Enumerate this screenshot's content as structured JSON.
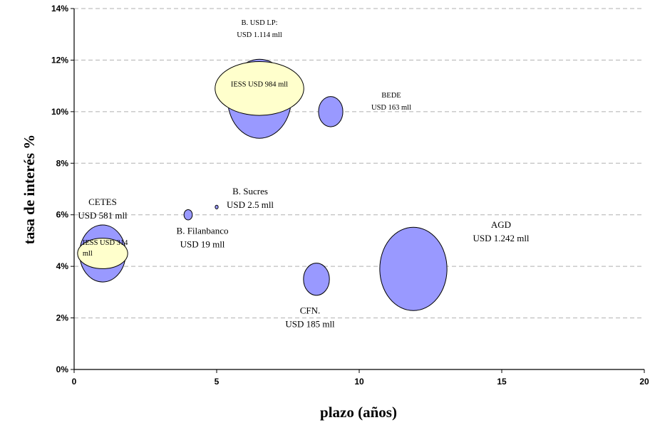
{
  "chart_data": {
    "type": "scatter",
    "subtype": "bubble",
    "title": "",
    "xlabel": "plazo (años)",
    "ylabel": "tasa de interés %",
    "xlim": [
      0,
      20
    ],
    "ylim": [
      0,
      14
    ],
    "x_ticks": [
      "0",
      "5",
      "10",
      "15",
      "20"
    ],
    "y_ticks": [
      "0%",
      "2%",
      "4%",
      "6%",
      "8%",
      "10%",
      "12%",
      "14%"
    ],
    "grid": "horizontal dashed",
    "legend": "none",
    "colors": {
      "bubble_fill": "#9999ff",
      "iess_fill": "#ffffcc",
      "grid": "#b0b0b0"
    },
    "points": [
      {
        "x": 6.5,
        "y": 10.5,
        "size_musd": 1114,
        "label_lines": [
          "B. USD LP:",
          "USD 1.114 mll"
        ],
        "label_style": "small"
      },
      {
        "x": 9.0,
        "y": 10.0,
        "size_musd": 163,
        "label_lines": [
          "BEDE",
          "USD 163 mll"
        ],
        "label_style": "small"
      },
      {
        "x": 1.0,
        "y": 4.5,
        "size_musd": 581,
        "label_lines": [
          "CETES",
          "USD 581 mll"
        ],
        "label_style": "normal"
      },
      {
        "x": 4.0,
        "y": 6.0,
        "size_musd": 19,
        "label_lines": [
          "B. Filanbanco",
          "USD 19 mll"
        ],
        "label_style": "normal"
      },
      {
        "x": 5.0,
        "y": 6.3,
        "size_musd": 2.5,
        "label_lines": [
          "B. Sucres",
          "USD 2.5 mll"
        ],
        "label_style": "normal"
      },
      {
        "x": 8.5,
        "y": 3.5,
        "size_musd": 185,
        "label_lines": [
          "CFN.",
          "USD 185 mll"
        ],
        "label_style": "normal"
      },
      {
        "x": 11.9,
        "y": 3.9,
        "size_musd": 1242,
        "label_lines": [
          "AGD",
          "USD 1.242 mll"
        ],
        "label_style": "normal"
      }
    ],
    "iess_overlays": [
      {
        "x": 6.5,
        "y": 10.9,
        "size_musd": 984,
        "label_lines": [
          "IESS USD 984 mll"
        ]
      },
      {
        "x": 1.0,
        "y": 4.5,
        "size_musd": 314,
        "label_lines": [
          "IESS USD 314",
          "mll"
        ]
      }
    ]
  }
}
